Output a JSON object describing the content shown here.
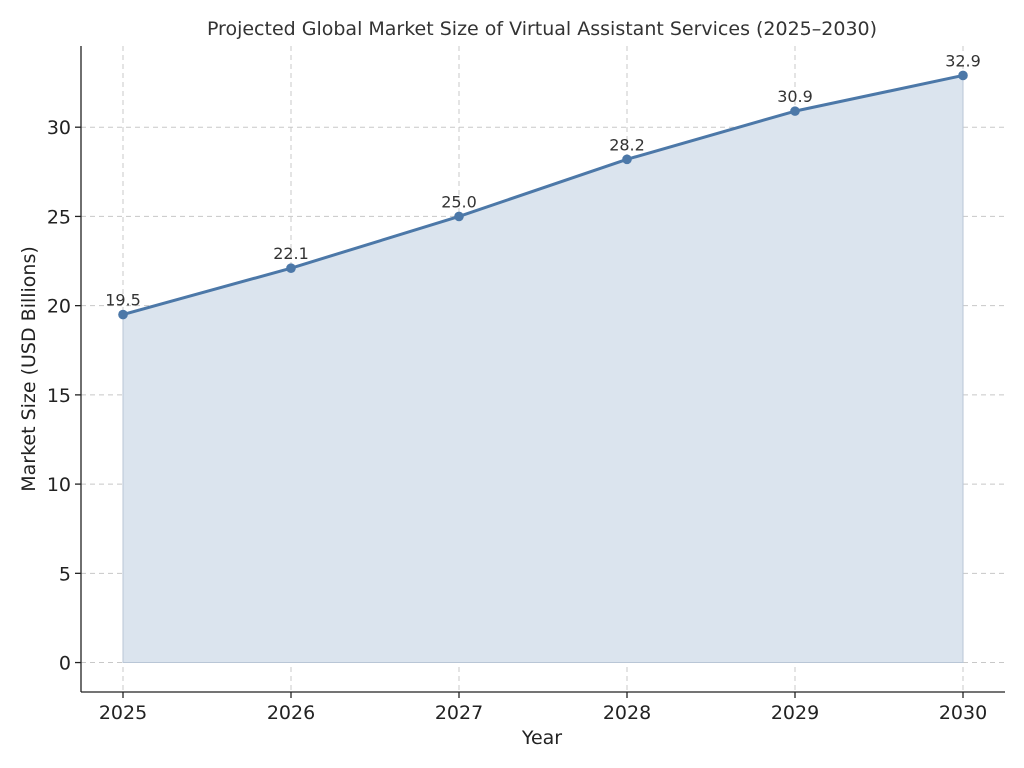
{
  "chart_data": {
    "type": "area",
    "title": "Projected Global Market Size of Virtual Assistant Services (2025–2030)",
    "xlabel": "Year",
    "ylabel": "Market Size (USD Billions)",
    "x": [
      2025,
      2026,
      2027,
      2028,
      2029,
      2030
    ],
    "x_tick_labels": [
      "2025",
      "2026",
      "2027",
      "2028",
      "2029",
      "2030"
    ],
    "values": [
      19.5,
      22.1,
      25.0,
      28.2,
      30.9,
      32.9
    ],
    "data_labels": [
      "19.5",
      "22.1",
      "25.0",
      "28.2",
      "30.9",
      "32.9"
    ],
    "y_ticks": [
      0,
      5,
      10,
      15,
      20,
      25,
      30
    ],
    "y_tick_labels": [
      "0",
      "5",
      "10",
      "15",
      "20",
      "25",
      "30"
    ],
    "xlim": [
      2024.75,
      2030.25
    ],
    "ylim": [
      -1.65,
      34.55
    ],
    "grid": true,
    "markers": true,
    "line_color": "#4c78a8",
    "fill_color": "#dbe4ee"
  }
}
